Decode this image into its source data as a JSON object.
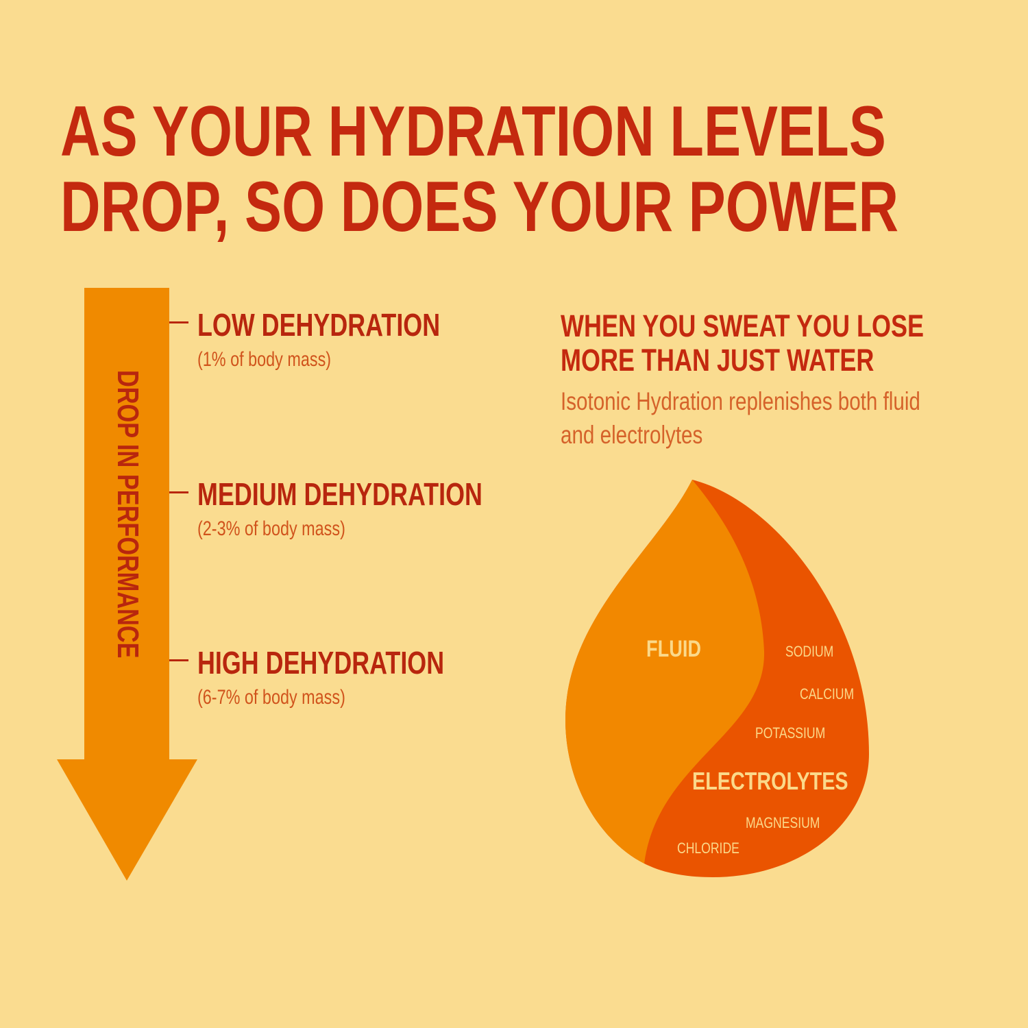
{
  "title": {
    "line1": "AS YOUR HYDRATION LEVELS",
    "line2": "DROP, SO DOES YOUR POWER"
  },
  "arrow": {
    "label": "DROP IN PERFORMANCE"
  },
  "levels": [
    {
      "label": "LOW DEHYDRATION",
      "detail": "(1% of body mass)"
    },
    {
      "label": "MEDIUM DEHYDRATION",
      "detail": "(2-3% of body mass)"
    },
    {
      "label": "HIGH DEHYDRATION",
      "detail": "(6-7% of body mass)"
    }
  ],
  "sweat": {
    "heading1": "WHEN YOU SWEAT YOU LOSE",
    "heading2": "MORE THAN JUST WATER",
    "body1": "Isotonic Hydration replenishes both fluid",
    "body2": "and electrolytes"
  },
  "drop": {
    "fluid": "FLUID",
    "electrolytes": "ELECTROLYTES",
    "minerals": [
      "SODIUM",
      "CALCIUM",
      "POTASSIUM",
      "MAGNESIUM",
      "CHLORIDE"
    ]
  },
  "colors": {
    "background": "#fadc90",
    "title": "#c4290f",
    "arrow": "#f08a00",
    "electrolytes": "#ea5400"
  }
}
